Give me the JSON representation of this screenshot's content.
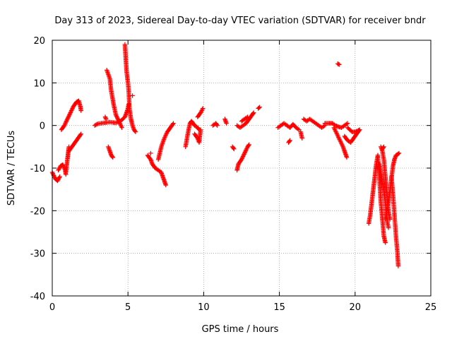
{
  "chart_data": {
    "type": "scatter",
    "title": "Day 313 of 2023, Sidereal Day-to-day VTEC variation (SDTVAR) for receiver bndr",
    "xlabel": "GPS time / hours",
    "ylabel": "SDTVAR / TECUs",
    "xlim": [
      0,
      25
    ],
    "ylim": [
      -40,
      20
    ],
    "xticks": [
      0,
      5,
      10,
      15,
      20,
      25
    ],
    "yticks": [
      -40,
      -30,
      -20,
      -10,
      0,
      10,
      20
    ],
    "xtick_labels": [
      "0",
      "5",
      "10",
      "15",
      "20",
      "25"
    ],
    "ytick_labels": [
      "-40",
      "-30",
      "-20",
      "-10",
      "0",
      "10",
      "20"
    ],
    "grid": true,
    "marker": "+",
    "color": "#ff0000",
    "series": [
      {
        "name": "bndr",
        "segments": [
          [
            [
              0.0,
              -11
            ],
            [
              0.2,
              -12.5
            ],
            [
              0.35,
              -13
            ],
            [
              0.5,
              -12
            ]
          ],
          [
            [
              0.4,
              -10.5
            ],
            [
              0.55,
              -9.5
            ],
            [
              0.7,
              -9.2
            ],
            [
              0.85,
              -10.5
            ],
            [
              0.9,
              -11.5
            ]
          ],
          [
            [
              0.6,
              -1
            ],
            [
              0.8,
              0
            ],
            [
              1.0,
              1.5
            ],
            [
              1.2,
              3
            ],
            [
              1.4,
              4.5
            ],
            [
              1.6,
              5.5
            ],
            [
              1.75,
              5.8
            ],
            [
              1.85,
              4.5
            ],
            [
              1.9,
              3.5
            ]
          ],
          [
            [
              0.9,
              -11
            ],
            [
              1.0,
              -8
            ],
            [
              1.05,
              -6.5
            ],
            [
              1.1,
              -5
            ]
          ],
          [
            [
              1.1,
              -6
            ],
            [
              1.3,
              -5
            ],
            [
              1.5,
              -4
            ],
            [
              1.7,
              -3
            ],
            [
              1.9,
              -2
            ]
          ],
          [
            [
              2.8,
              0
            ],
            [
              3.0,
              0.4
            ],
            [
              3.4,
              0.6
            ],
            [
              3.8,
              0.8
            ],
            [
              4.2,
              0.6
            ],
            [
              4.5,
              1
            ],
            [
              4.8,
              2
            ],
            [
              5.0,
              4
            ],
            [
              5.05,
              5
            ]
          ],
          [
            [
              3.5,
              2
            ],
            [
              3.55,
              1.5
            ]
          ],
          [
            [
              3.6,
              13
            ],
            [
              3.8,
              11
            ],
            [
              3.9,
              8
            ],
            [
              4.05,
              5
            ],
            [
              4.2,
              2.5
            ],
            [
              4.4,
              1
            ],
            [
              4.6,
              -0.5
            ]
          ],
          [
            [
              3.7,
              -5
            ],
            [
              3.8,
              -6
            ],
            [
              3.9,
              -7
            ],
            [
              4.0,
              -7.5
            ]
          ],
          [
            [
              4.8,
              19
            ],
            [
              4.85,
              16
            ],
            [
              4.9,
              13
            ],
            [
              5.0,
              10
            ],
            [
              5.05,
              8
            ],
            [
              5.1,
              4
            ],
            [
              5.2,
              1.5
            ],
            [
              5.3,
              0
            ],
            [
              5.4,
              -1
            ],
            [
              5.5,
              -1.5
            ]
          ],
          [
            [
              5.3,
              7
            ]
          ],
          [
            [
              6.3,
              -7
            ],
            [
              6.5,
              -8
            ],
            [
              6.6,
              -9
            ],
            [
              6.8,
              -10
            ],
            [
              7.0,
              -10.5
            ],
            [
              7.2,
              -11
            ],
            [
              7.3,
              -12
            ],
            [
              7.4,
              -13
            ],
            [
              7.5,
              -14
            ]
          ],
          [
            [
              6.5,
              -6.5
            ]
          ],
          [
            [
              7.0,
              -8
            ],
            [
              7.2,
              -5
            ],
            [
              7.4,
              -3
            ],
            [
              7.6,
              -1.5
            ],
            [
              7.8,
              -0.5
            ],
            [
              8.0,
              0.5
            ]
          ],
          [
            [
              8.8,
              -5
            ],
            [
              8.9,
              -3
            ],
            [
              9.0,
              -1
            ],
            [
              9.1,
              0.5
            ],
            [
              9.2,
              1
            ],
            [
              9.4,
              0
            ],
            [
              9.6,
              -0.5
            ],
            [
              9.7,
              -1
            ]
          ],
          [
            [
              9.4,
              -2
            ],
            [
              9.6,
              -3
            ],
            [
              9.7,
              -4
            ],
            [
              9.8,
              -1
            ]
          ],
          [
            [
              9.6,
              2
            ],
            [
              9.8,
              3
            ],
            [
              9.95,
              4
            ]
          ],
          [
            [
              10.6,
              0
            ],
            [
              10.8,
              0.5
            ],
            [
              10.9,
              0
            ]
          ],
          [
            [
              11.4,
              1.5
            ],
            [
              11.5,
              0.5
            ]
          ],
          [
            [
              11.9,
              -5
            ],
            [
              12.0,
              -5.5
            ]
          ],
          [
            [
              12.2,
              -10.5
            ],
            [
              12.3,
              -9
            ],
            [
              12.5,
              -8
            ],
            [
              12.7,
              -6.5
            ],
            [
              12.9,
              -5
            ],
            [
              13.0,
              -4.5
            ]
          ],
          [
            [
              12.2,
              0
            ],
            [
              12.4,
              -0.5
            ],
            [
              12.6,
              0
            ],
            [
              12.8,
              0.5
            ],
            [
              13.0,
              1.5
            ],
            [
              13.2,
              2.5
            ],
            [
              13.3,
              3
            ]
          ],
          [
            [
              12.5,
              1
            ],
            [
              12.7,
              1.5
            ],
            [
              12.9,
              2
            ]
          ],
          [
            [
              13.6,
              4
            ],
            [
              13.7,
              4.3
            ]
          ],
          [
            [
              14.9,
              -0.5
            ],
            [
              15.1,
              0
            ],
            [
              15.3,
              0.5
            ],
            [
              15.5,
              0
            ],
            [
              15.7,
              -0.5
            ],
            [
              15.9,
              0.3
            ],
            [
              16.1,
              -0.5
            ],
            [
              16.3,
              -1
            ]
          ],
          [
            [
              15.6,
              -4
            ],
            [
              15.7,
              -3.5
            ]
          ],
          [
            [
              16.4,
              -1.5
            ],
            [
              16.5,
              -3
            ]
          ],
          [
            [
              16.6,
              1.5
            ],
            [
              16.8,
              1
            ],
            [
              17.0,
              1.5
            ],
            [
              17.2,
              1
            ],
            [
              17.4,
              0.5
            ],
            [
              17.6,
              0
            ],
            [
              17.8,
              -0.5
            ],
            [
              18.0,
              0
            ]
          ],
          [
            [
              18.0,
              0.5
            ],
            [
              18.3,
              0.5
            ],
            [
              18.5,
              0.5
            ],
            [
              18.7,
              0
            ],
            [
              18.9,
              -0.3
            ],
            [
              19.1,
              -0.5
            ],
            [
              19.3,
              0
            ],
            [
              19.5,
              0.5
            ]
          ],
          [
            [
              18.85,
              14.5
            ],
            [
              18.95,
              14.3
            ]
          ],
          [
            [
              18.6,
              -0.5
            ],
            [
              18.8,
              -2
            ],
            [
              19.0,
              -3.5
            ],
            [
              19.2,
              -5
            ],
            [
              19.35,
              -6.5
            ],
            [
              19.45,
              -7.5
            ]
          ],
          [
            [
              19.3,
              -2.5
            ],
            [
              19.5,
              -3.5
            ],
            [
              19.7,
              -4
            ],
            [
              19.9,
              -3
            ],
            [
              20.1,
              -2
            ],
            [
              20.3,
              -1
            ]
          ],
          [
            [
              19.5,
              -0.5
            ],
            [
              19.8,
              -1.5
            ],
            [
              20.0,
              -1.5
            ],
            [
              20.3,
              -1
            ]
          ],
          [
            [
              20.9,
              -23
            ],
            [
              21.0,
              -21
            ],
            [
              21.1,
              -18
            ],
            [
              21.2,
              -15
            ],
            [
              21.3,
              -12
            ],
            [
              21.4,
              -9
            ],
            [
              21.5,
              -7
            ]
          ],
          [
            [
              21.5,
              -7
            ],
            [
              21.6,
              -12
            ],
            [
              21.7,
              -18
            ],
            [
              21.8,
              -22
            ],
            [
              21.9,
              -26
            ],
            [
              22.0,
              -27.5
            ]
          ],
          [
            [
              21.6,
              -9
            ],
            [
              21.8,
              -13
            ],
            [
              22.0,
              -18
            ],
            [
              22.1,
              -22
            ],
            [
              22.2,
              -24
            ]
          ],
          [
            [
              21.7,
              -5
            ],
            [
              21.8,
              -6
            ],
            [
              21.9,
              -8
            ],
            [
              22.0,
              -12
            ],
            [
              22.1,
              -16
            ],
            [
              22.2,
              -20
            ],
            [
              22.3,
              -22
            ]
          ],
          [
            [
              21.8,
              -5.5
            ],
            [
              21.9,
              -5
            ]
          ],
          [
            [
              22.0,
              -22
            ],
            [
              22.2,
              -18
            ],
            [
              22.35,
              -14
            ],
            [
              22.5,
              -9.5
            ],
            [
              22.6,
              -8
            ]
          ],
          [
            [
              22.4,
              -12
            ],
            [
              22.5,
              -16
            ],
            [
              22.6,
              -21
            ],
            [
              22.7,
              -26
            ],
            [
              22.8,
              -30
            ],
            [
              22.85,
              -33
            ]
          ],
          [
            [
              22.6,
              -8
            ],
            [
              22.7,
              -7
            ],
            [
              22.8,
              -6.8
            ],
            [
              22.9,
              -6.5
            ]
          ]
        ]
      }
    ]
  }
}
